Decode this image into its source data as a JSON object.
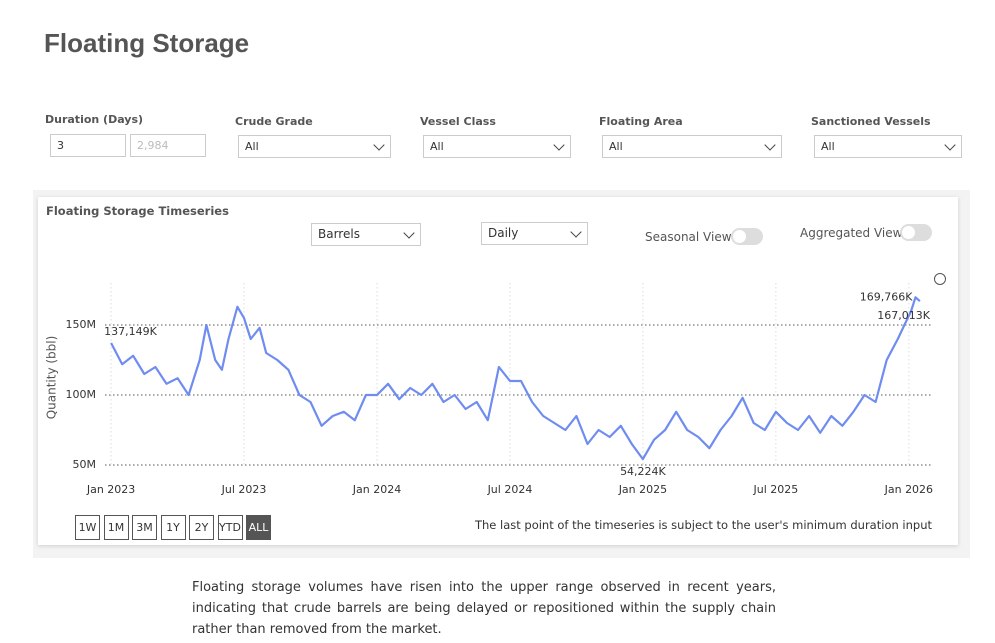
{
  "title": "Floating Storage",
  "filters": [
    {
      "label": "Duration (Days)",
      "values": [
        "3",
        "2,984"
      ]
    },
    {
      "label": "Crude Grade",
      "value": "All"
    },
    {
      "label": "Vessel Class",
      "value": "All"
    },
    {
      "label": "Floating Area",
      "value": "All"
    },
    {
      "label": "Sanctioned Vessels",
      "value": "All"
    }
  ],
  "controls": {
    "unit": "Barrels",
    "frequency": "Daily",
    "toggles": [
      "Seasonal View",
      "Aggregated View"
    ]
  },
  "range_buttons": [
    "1W",
    "1M",
    "3M",
    "1Y",
    "2Y",
    "YTD",
    "ALL"
  ],
  "note": "The last point of the timeseries is subject to the user's minimum duration input",
  "description": "Floating storage volumes have risen into the upper range observed in recent years, indicating that crude barrels are being delayed or repositioned within the supply chain rather than removed from the market.",
  "chart_data": {
    "type": "line",
    "title": "Floating Storage Timeseries",
    "y_label": "Quantity (bbl)",
    "x": [
      0,
      0.5,
      1,
      1.5,
      2,
      2.5,
      3,
      3.5,
      4,
      4.3,
      4.7,
      5,
      5.3,
      5.7,
      6,
      6.3,
      6.7,
      7,
      7.5,
      8,
      8.5,
      9,
      9.5,
      10,
      10.5,
      11,
      11.5,
      12,
      12.5,
      13,
      13.5,
      14,
      14.5,
      15,
      15.5,
      16,
      16.5,
      17,
      17.5,
      18,
      18.5,
      19,
      19.5,
      20,
      20.5,
      21,
      21.5,
      22,
      22.5,
      23,
      23.5,
      24,
      24.5,
      25,
      25.5,
      26,
      26.5,
      27,
      27.5,
      28,
      28.5,
      29,
      29.5,
      30,
      30.5,
      31,
      31.5,
      32,
      32.5,
      33,
      33.5,
      34,
      34.5,
      35,
      35.5,
      35.8,
      36.1,
      36.3,
      36.5
    ],
    "series": [
      {
        "name": "Floating Storage",
        "color": "#6f8cf0",
        "values": [
          137149000,
          122000000,
          128000000,
          115000000,
          120000000,
          108000000,
          112000000,
          100000000,
          125000000,
          150000000,
          125000000,
          118000000,
          140000000,
          163000000,
          155000000,
          140000000,
          148000000,
          130000000,
          125000000,
          118000000,
          100000000,
          95000000,
          78000000,
          85000000,
          88000000,
          82000000,
          100000000,
          100000000,
          108000000,
          97000000,
          105000000,
          100000000,
          108000000,
          95000000,
          100000000,
          90000000,
          95000000,
          82000000,
          120000000,
          110000000,
          110000000,
          95000000,
          85000000,
          80000000,
          75000000,
          85000000,
          65000000,
          75000000,
          70000000,
          78000000,
          65000000,
          54224000,
          68000000,
          75000000,
          88000000,
          75000000,
          70000000,
          62000000,
          75000000,
          85000000,
          98000000,
          80000000,
          75000000,
          88000000,
          80000000,
          75000000,
          85000000,
          73000000,
          85000000,
          78000000,
          88000000,
          100000000,
          95000000,
          125000000,
          140000000,
          150000000,
          160000000,
          169766000,
          167013000
        ],
        "value_labels": [
          "137,149K",
          null,
          null,
          null,
          null,
          null,
          null,
          null,
          null,
          null,
          null,
          null,
          null,
          null,
          null,
          null,
          null,
          null,
          null,
          null,
          null,
          null,
          null,
          null,
          null,
          null,
          null,
          null,
          null,
          null,
          null,
          null,
          null,
          null,
          null,
          null,
          null,
          null,
          null,
          null,
          null,
          null,
          null,
          null,
          null,
          null,
          null,
          null,
          null,
          null,
          null,
          "54,224K",
          null,
          null,
          null,
          null,
          null,
          null,
          null,
          null,
          null,
          null,
          null,
          null,
          null,
          null,
          null,
          null,
          null,
          null,
          null,
          null,
          null,
          null,
          null,
          null,
          null,
          "169,766K",
          "167,013K"
        ]
      }
    ],
    "xlim": [
      -0.5,
      37
    ],
    "xticks": [
      {
        "value": 0,
        "label": "Jan 2023"
      },
      {
        "value": 6,
        "label": "Jul 2023"
      },
      {
        "value": 12,
        "label": "Jan 2024"
      },
      {
        "value": 18,
        "label": "Jul 2024"
      },
      {
        "value": 24,
        "label": "Jan 2025"
      },
      {
        "value": 30,
        "label": "Jul 2025"
      },
      {
        "value": 36,
        "label": "Jan 2026"
      }
    ],
    "ylim": [
      45000000,
      180000000
    ],
    "yticks": [
      {
        "value": 50000000,
        "label": "50M"
      },
      {
        "value": 100000000,
        "label": "100M"
      },
      {
        "value": 150000000,
        "label": "150M"
      }
    ],
    "grid": true
  }
}
